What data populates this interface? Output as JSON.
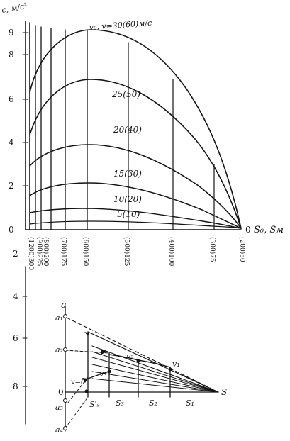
{
  "top_chart": {
    "y_axis_label": "c, м/с²",
    "y_ticks": [
      "0",
      "2",
      "4",
      "6",
      "8",
      "9"
    ],
    "x_axis_label": "S₀, Sм",
    "origin_label": "0",
    "x_tick_labels": [
      "(1200)300",
      "(900)225",
      "(800)200",
      "(700)175",
      "(600)150",
      "(500)125",
      "(400)100",
      "(300)75",
      "(200)50"
    ],
    "curve_labels": [
      "v₀, v=30(60)м/с",
      "25(50)",
      "20(40)",
      "15(30)",
      "10(20)",
      "5(10)"
    ]
  },
  "bottom_chart": {
    "axis_letter": "a",
    "ticks": [
      "2",
      "4",
      "6",
      "0",
      "8"
    ],
    "points": [
      "a₁",
      "a₂",
      "a₃",
      "a₄",
      "v₁",
      "v₂",
      "v₃",
      "v=0"
    ],
    "segment_labels": [
      "S'ₓ",
      "S₃",
      "S₂",
      "S₁"
    ],
    "s_label": "S"
  }
}
